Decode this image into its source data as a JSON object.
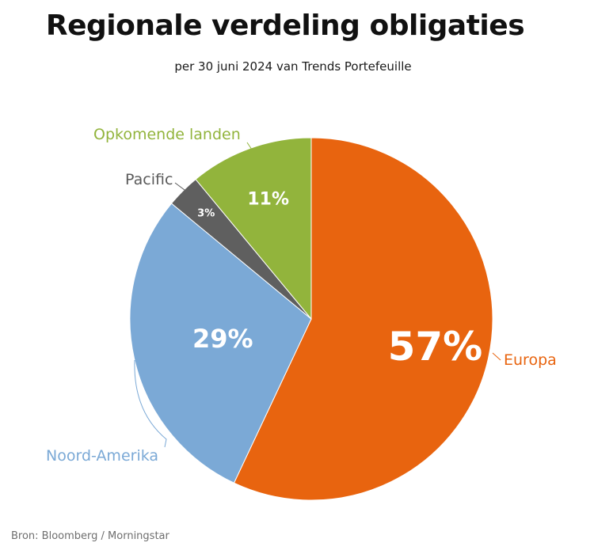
{
  "chart_data": {
    "type": "pie",
    "title": "Regionale verdeling obligaties",
    "subtitle": "per 30 juni 2024 van Trends Portefeuille",
    "source": "Bron: Bloomberg / Morningstar",
    "slices": [
      {
        "name": "Europa",
        "value": 57,
        "label": "57%",
        "color": "#E8640F"
      },
      {
        "name": "Noord-Amerika",
        "value": 29,
        "label": "29%",
        "color": "#7BA9D6"
      },
      {
        "name": "Pacific",
        "value": 3,
        "label": "3%",
        "color": "#5F5F5F"
      },
      {
        "name": "Opkomende landen",
        "value": 11,
        "label": "11%",
        "color": "#92B43C"
      }
    ],
    "start_angle": "12 o'clock",
    "direction": "clockwise",
    "legend": "none"
  }
}
